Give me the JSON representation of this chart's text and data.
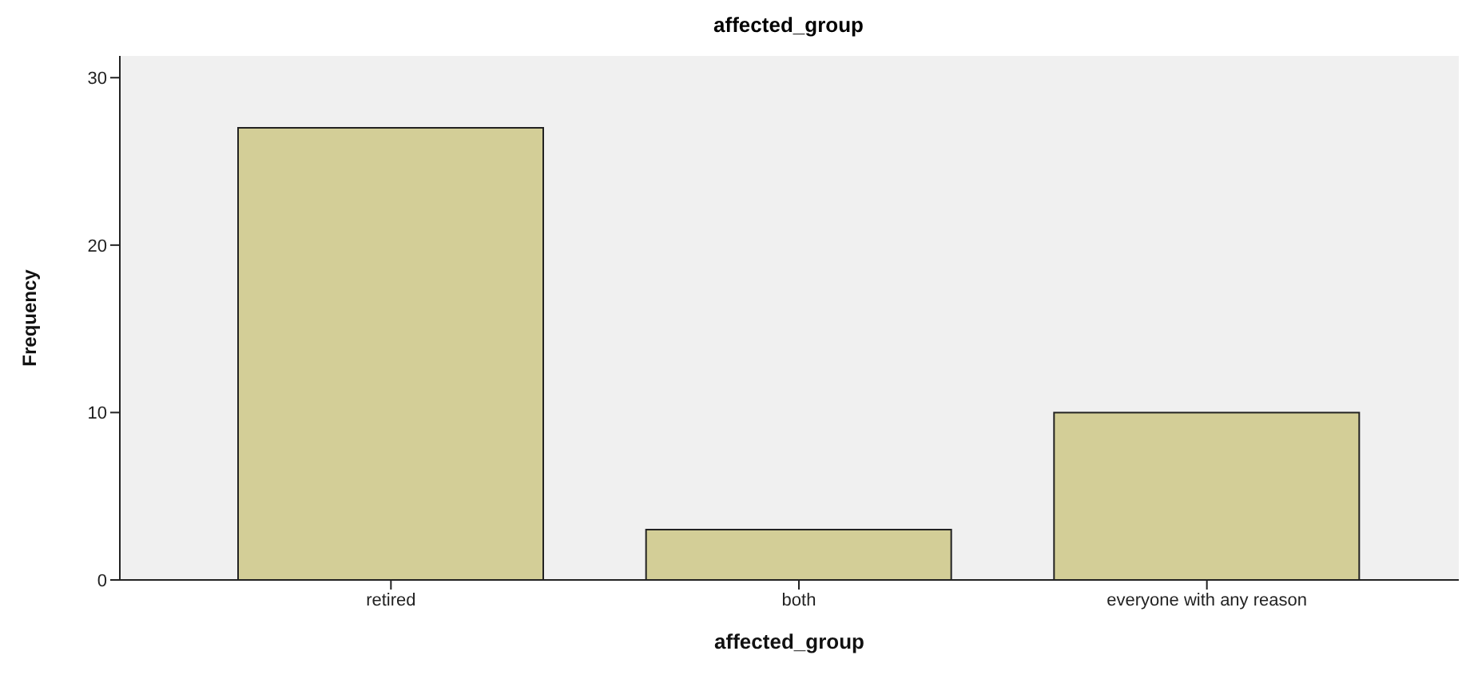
{
  "chart_data": {
    "type": "bar",
    "title": "affected_group",
    "xlabel": "affected_group",
    "ylabel": "Frequency",
    "categories": [
      "retired",
      "both",
      "everyone with any reason"
    ],
    "values": [
      27,
      3,
      10
    ],
    "color": "#d3ce97",
    "ylim": [
      0,
      31.3
    ],
    "yticks": [
      0,
      10,
      20,
      30
    ],
    "grid": false
  }
}
